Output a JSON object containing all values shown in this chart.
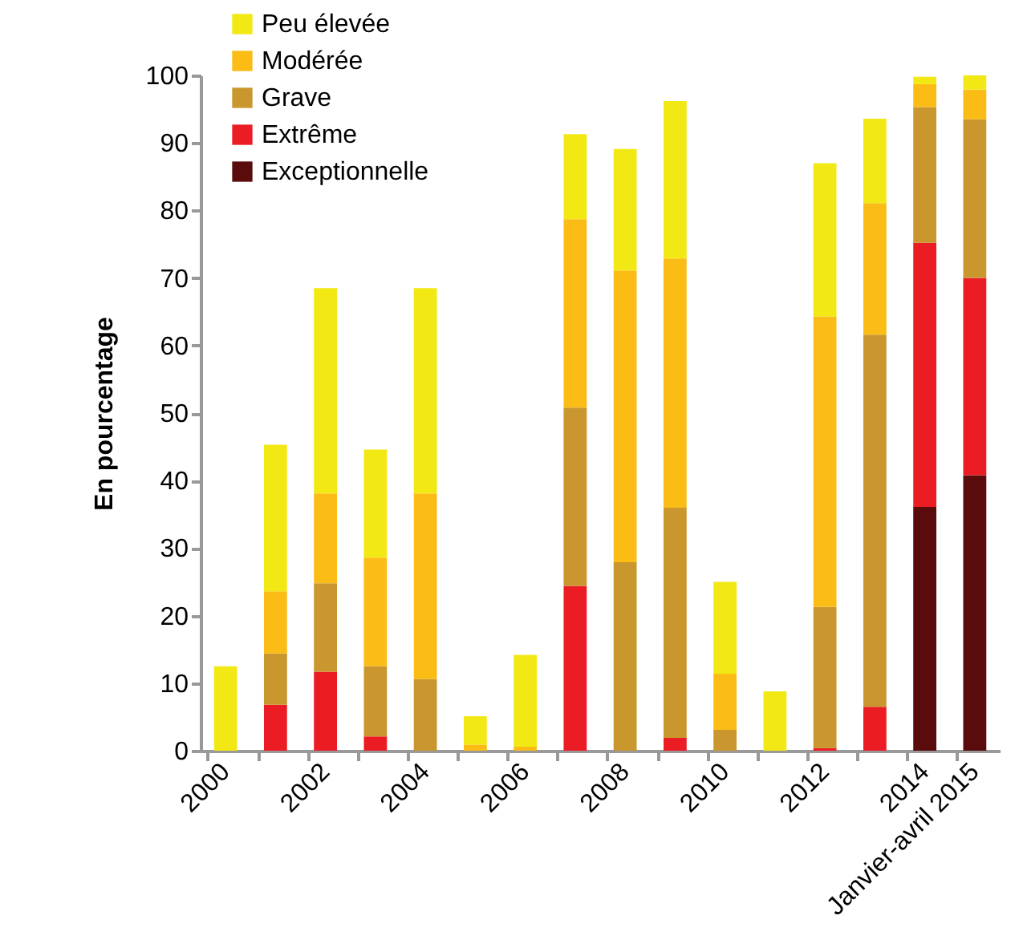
{
  "chart_data": {
    "type": "bar",
    "stacked": true,
    "ylabel": "En pourcentage",
    "categories": [
      "2000",
      null,
      "2002",
      null,
      "2004",
      null,
      "2006",
      null,
      "2008",
      null,
      "2010",
      null,
      "2012",
      null,
      "2014",
      "Janvier-avril 2015"
    ],
    "series": [
      {
        "name": "Exceptionnelle",
        "color": "#5a0b0b",
        "values": [
          0,
          0,
          0,
          0,
          0,
          0,
          0,
          0,
          0,
          0,
          0,
          0,
          0,
          0,
          36.1,
          40.8
        ]
      },
      {
        "name": "Extrême",
        "color": "#ec1c24",
        "values": [
          0,
          6.8,
          11.7,
          2.1,
          0,
          0,
          0,
          24.4,
          0,
          1.9,
          0,
          0,
          0.4,
          6.5,
          39.1,
          29.2
        ]
      },
      {
        "name": "Grave",
        "color": "#c9972d",
        "values": [
          0,
          7.6,
          13.1,
          10.4,
          10.6,
          0,
          0,
          26.4,
          27.9,
          34.1,
          3.1,
          0,
          20.9,
          55.1,
          20.1,
          23.5
        ]
      },
      {
        "name": "Modérée",
        "color": "#fbbc16",
        "values": [
          0,
          9.2,
          13.3,
          16.1,
          27.5,
          0.9,
          0.6,
          27.9,
          43.2,
          36.9,
          8.3,
          0,
          43.0,
          19.5,
          3.4,
          4.4
        ]
      },
      {
        "name": "Peu élevée",
        "color": "#f2e914",
        "values": [
          12.5,
          21.7,
          30.4,
          16.0,
          30.4,
          4.2,
          13.6,
          12.6,
          18.0,
          23.3,
          13.6,
          8.8,
          22.7,
          12.5,
          1.1,
          2.1
        ]
      }
    ],
    "ylim": [
      0,
      100
    ],
    "yticks": [
      0,
      10,
      20,
      30,
      40,
      50,
      60,
      70,
      80,
      90,
      100
    ],
    "grid": false,
    "legend": "top left"
  }
}
